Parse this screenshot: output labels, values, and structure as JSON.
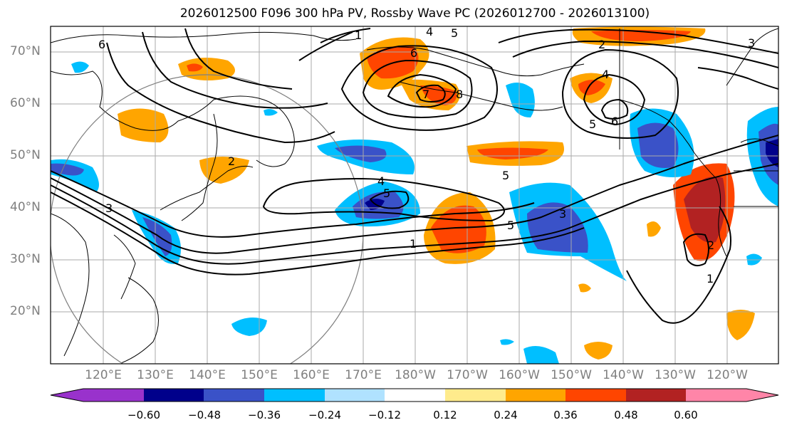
{
  "title": "2026012500 F096 300 hPa PV, Rossby Wave PC (2026012700 - 2026013100)",
  "lat_labels": [
    "70°N",
    "60°N",
    "50°N",
    "40°N",
    "30°N",
    "20°N"
  ],
  "lon_labels": [
    "120°E",
    "130°E",
    "140°E",
    "150°E",
    "160°E",
    "170°E",
    "180°W",
    "170°W",
    "160°W",
    "150°W",
    "140°W",
    "130°W",
    "120°W"
  ],
  "colorbar": {
    "ticks": [
      "−0.60",
      "−0.48",
      "−0.36",
      "−0.24",
      "−0.12",
      "0.12",
      "0.24",
      "0.36",
      "0.48",
      "0.60"
    ],
    "colors": [
      "#9932CC",
      "#00008B",
      "#3A52C8",
      "#00BFFF",
      "#B0E2FF",
      "#FFFFFF",
      "#FFEB8C",
      "#FFA500",
      "#FF4500",
      "#B22222",
      "#FF85A8"
    ]
  },
  "pv_contour_labels": [
    "1",
    "2",
    "3",
    "4",
    "5",
    "6",
    "7",
    "8"
  ],
  "colors": {
    "gridline": "#aaaaaa",
    "contour": "#000000",
    "coast": "#000000",
    "label": "#7f7f7f"
  }
}
